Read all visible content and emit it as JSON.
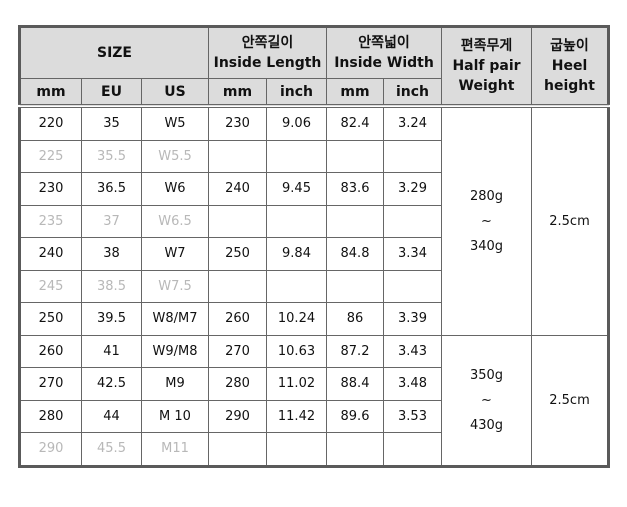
{
  "header": {
    "size": "SIZE",
    "inside_length_ko": "안쪽길이",
    "inside_length_en": "Inside Length",
    "inside_width_ko": "안쪽넓이",
    "inside_width_en": "Inside Width",
    "weight_ko": "편족무게",
    "weight_en1": "Half pair",
    "weight_en2": "Weight",
    "heel_ko": "굽높이",
    "heel_en1": "Heel",
    "heel_en2": "height",
    "mm": "mm",
    "eu": "EU",
    "us": "US",
    "inch": "inch"
  },
  "rows": [
    {
      "mm": "220",
      "eu": "35",
      "us": "W5",
      "len_mm": "230",
      "len_in": "9.06",
      "wid_mm": "82.4",
      "wid_in": "3.24",
      "muted": false
    },
    {
      "mm": "225",
      "eu": "35.5",
      "us": "W5.5",
      "len_mm": "",
      "len_in": "",
      "wid_mm": "",
      "wid_in": "",
      "muted": true
    },
    {
      "mm": "230",
      "eu": "36.5",
      "us": "W6",
      "len_mm": "240",
      "len_in": "9.45",
      "wid_mm": "83.6",
      "wid_in": "3.29",
      "muted": false
    },
    {
      "mm": "235",
      "eu": "37",
      "us": "W6.5",
      "len_mm": "",
      "len_in": "",
      "wid_mm": "",
      "wid_in": "",
      "muted": true
    },
    {
      "mm": "240",
      "eu": "38",
      "us": "W7",
      "len_mm": "250",
      "len_in": "9.84",
      "wid_mm": "84.8",
      "wid_in": "3.34",
      "muted": false
    },
    {
      "mm": "245",
      "eu": "38.5",
      "us": "W7.5",
      "len_mm": "",
      "len_in": "",
      "wid_mm": "",
      "wid_in": "",
      "muted": true
    },
    {
      "mm": "250",
      "eu": "39.5",
      "us": "W8/M7",
      "len_mm": "260",
      "len_in": "10.24",
      "wid_mm": "86",
      "wid_in": "3.39",
      "muted": false
    },
    {
      "mm": "260",
      "eu": "41",
      "us": "W9/M8",
      "len_mm": "270",
      "len_in": "10.63",
      "wid_mm": "87.2",
      "wid_in": "3.43",
      "muted": false
    },
    {
      "mm": "270",
      "eu": "42.5",
      "us": "M9",
      "len_mm": "280",
      "len_in": "11.02",
      "wid_mm": "88.4",
      "wid_in": "3.48",
      "muted": false
    },
    {
      "mm": "280",
      "eu": "44",
      "us": "M 10",
      "len_mm": "290",
      "len_in": "11.42",
      "wid_mm": "89.6",
      "wid_in": "3.53",
      "muted": false
    },
    {
      "mm": "290",
      "eu": "45.5",
      "us": "M11",
      "len_mm": "",
      "len_in": "",
      "wid_mm": "",
      "wid_in": "",
      "muted": true
    }
  ],
  "groups": [
    {
      "rows": 7,
      "weight_min": "280g",
      "tilde": "~",
      "weight_max": "340g",
      "heel": "2.5cm"
    },
    {
      "rows": 4,
      "weight_min": "350g",
      "tilde": "~",
      "weight_max": "430g",
      "heel": "2.5cm"
    }
  ]
}
